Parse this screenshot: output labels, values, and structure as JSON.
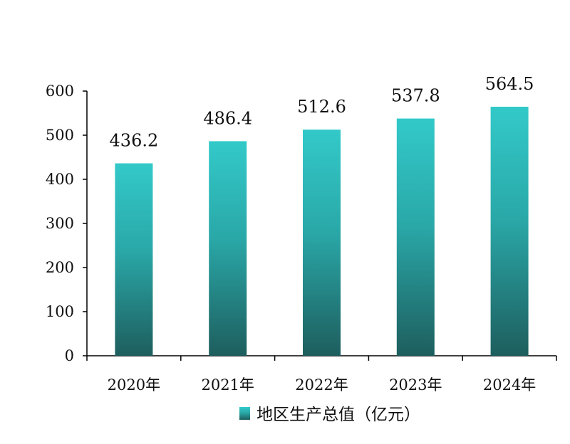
{
  "chart_data": {
    "type": "bar",
    "categories": [
      "2020年",
      "2021年",
      "2022年",
      "2023年",
      "2024年"
    ],
    "series": [
      {
        "name": "地区生产总值（亿元）",
        "values": [
          436.2,
          486.4,
          512.6,
          537.8,
          564.5
        ]
      }
    ],
    "value_labels": [
      "436.2",
      "486.4",
      "512.6",
      "537.8",
      "564.5"
    ],
    "yticks": [
      "0",
      "100",
      "200",
      "300",
      "400",
      "500",
      "600"
    ],
    "ylim": [
      0,
      600
    ],
    "grid": false,
    "legend_position": "bottom",
    "colors": {
      "bar_top": "#33C9C9",
      "bar_bottom": "#1E5E5E",
      "axis": "#000000"
    }
  }
}
